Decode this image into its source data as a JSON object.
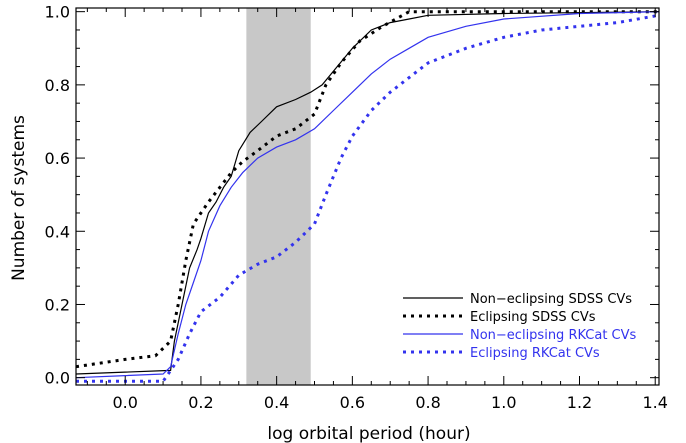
{
  "chart_data": {
    "type": "line",
    "xlabel": "log orbital period (hour)",
    "ylabel": "Number of systems",
    "xlim": [
      -0.13,
      1.41
    ],
    "ylim": [
      -0.02,
      1.01
    ],
    "x_ticks": [
      0.0,
      0.2,
      0.4,
      0.6,
      0.8,
      1.0,
      1.2,
      1.4
    ],
    "x_tick_labels": [
      "0.0",
      "0.2",
      "0.4",
      "0.6",
      "0.8",
      "1.0",
      "1.2",
      "1.4"
    ],
    "y_ticks": [
      0.0,
      0.2,
      0.4,
      0.6,
      0.8,
      1.0
    ],
    "y_tick_labels": [
      "0.0",
      "0.2",
      "0.4",
      "0.6",
      "0.8",
      "1.0"
    ],
    "shaded_region": {
      "x": [
        0.32,
        0.49
      ],
      "color": "#c8c8c8"
    },
    "legend_position": "bottom-right",
    "series": [
      {
        "name": "Non−eclipsing SDSS CVs",
        "color": "#000000",
        "style": "solid",
        "points": [
          [
            -0.13,
            0.01
          ],
          [
            0.12,
            0.02
          ],
          [
            0.13,
            0.1
          ],
          [
            0.15,
            0.2
          ],
          [
            0.17,
            0.3
          ],
          [
            0.19,
            0.35
          ],
          [
            0.2,
            0.38
          ],
          [
            0.22,
            0.45
          ],
          [
            0.24,
            0.48
          ],
          [
            0.26,
            0.52
          ],
          [
            0.28,
            0.55
          ],
          [
            0.3,
            0.62
          ],
          [
            0.33,
            0.67
          ],
          [
            0.36,
            0.7
          ],
          [
            0.4,
            0.74
          ],
          [
            0.45,
            0.76
          ],
          [
            0.49,
            0.78
          ],
          [
            0.52,
            0.8
          ],
          [
            0.56,
            0.85
          ],
          [
            0.6,
            0.9
          ],
          [
            0.65,
            0.95
          ],
          [
            0.7,
            0.97
          ],
          [
            0.75,
            0.98
          ],
          [
            0.8,
            0.99
          ],
          [
            1.0,
            0.995
          ],
          [
            1.41,
            1.0
          ]
        ]
      },
      {
        "name": "Eclipsing SDSS CVs",
        "color": "#000000",
        "style": "dotted",
        "points": [
          [
            -0.13,
            0.03
          ],
          [
            0.0,
            0.05
          ],
          [
            0.08,
            0.06
          ],
          [
            0.12,
            0.1
          ],
          [
            0.14,
            0.2
          ],
          [
            0.16,
            0.32
          ],
          [
            0.18,
            0.42
          ],
          [
            0.2,
            0.45
          ],
          [
            0.22,
            0.48
          ],
          [
            0.25,
            0.52
          ],
          [
            0.28,
            0.56
          ],
          [
            0.31,
            0.59
          ],
          [
            0.35,
            0.62
          ],
          [
            0.4,
            0.66
          ],
          [
            0.45,
            0.68
          ],
          [
            0.5,
            0.72
          ],
          [
            0.53,
            0.8
          ],
          [
            0.57,
            0.86
          ],
          [
            0.62,
            0.92
          ],
          [
            0.68,
            0.96
          ],
          [
            0.75,
            1.0
          ],
          [
            1.41,
            1.0
          ]
        ]
      },
      {
        "name": "Non−eclipsing RKCat CVs",
        "color": "#3333ee",
        "style": "solid",
        "points": [
          [
            -0.13,
            0.0
          ],
          [
            0.1,
            0.01
          ],
          [
            0.12,
            0.03
          ],
          [
            0.14,
            0.12
          ],
          [
            0.16,
            0.2
          ],
          [
            0.18,
            0.26
          ],
          [
            0.2,
            0.32
          ],
          [
            0.22,
            0.4
          ],
          [
            0.25,
            0.47
          ],
          [
            0.28,
            0.52
          ],
          [
            0.31,
            0.56
          ],
          [
            0.35,
            0.6
          ],
          [
            0.4,
            0.63
          ],
          [
            0.45,
            0.65
          ],
          [
            0.5,
            0.68
          ],
          [
            0.55,
            0.73
          ],
          [
            0.6,
            0.78
          ],
          [
            0.65,
            0.83
          ],
          [
            0.7,
            0.87
          ],
          [
            0.75,
            0.9
          ],
          [
            0.8,
            0.93
          ],
          [
            0.9,
            0.96
          ],
          [
            1.0,
            0.98
          ],
          [
            1.2,
            0.995
          ],
          [
            1.41,
            1.0
          ]
        ]
      },
      {
        "name": "Eclipsing RKCat CVs",
        "color": "#3333ee",
        "style": "dotted",
        "points": [
          [
            -0.13,
            -0.01
          ],
          [
            0.1,
            -0.01
          ],
          [
            0.14,
            0.05
          ],
          [
            0.17,
            0.12
          ],
          [
            0.2,
            0.18
          ],
          [
            0.25,
            0.22
          ],
          [
            0.3,
            0.28
          ],
          [
            0.35,
            0.31
          ],
          [
            0.4,
            0.33
          ],
          [
            0.45,
            0.37
          ],
          [
            0.5,
            0.42
          ],
          [
            0.53,
            0.5
          ],
          [
            0.57,
            0.6
          ],
          [
            0.6,
            0.66
          ],
          [
            0.65,
            0.73
          ],
          [
            0.7,
            0.78
          ],
          [
            0.8,
            0.86
          ],
          [
            0.9,
            0.9
          ],
          [
            1.0,
            0.93
          ],
          [
            1.1,
            0.95
          ],
          [
            1.2,
            0.96
          ],
          [
            1.3,
            0.97
          ],
          [
            1.41,
            0.99
          ]
        ]
      }
    ]
  }
}
